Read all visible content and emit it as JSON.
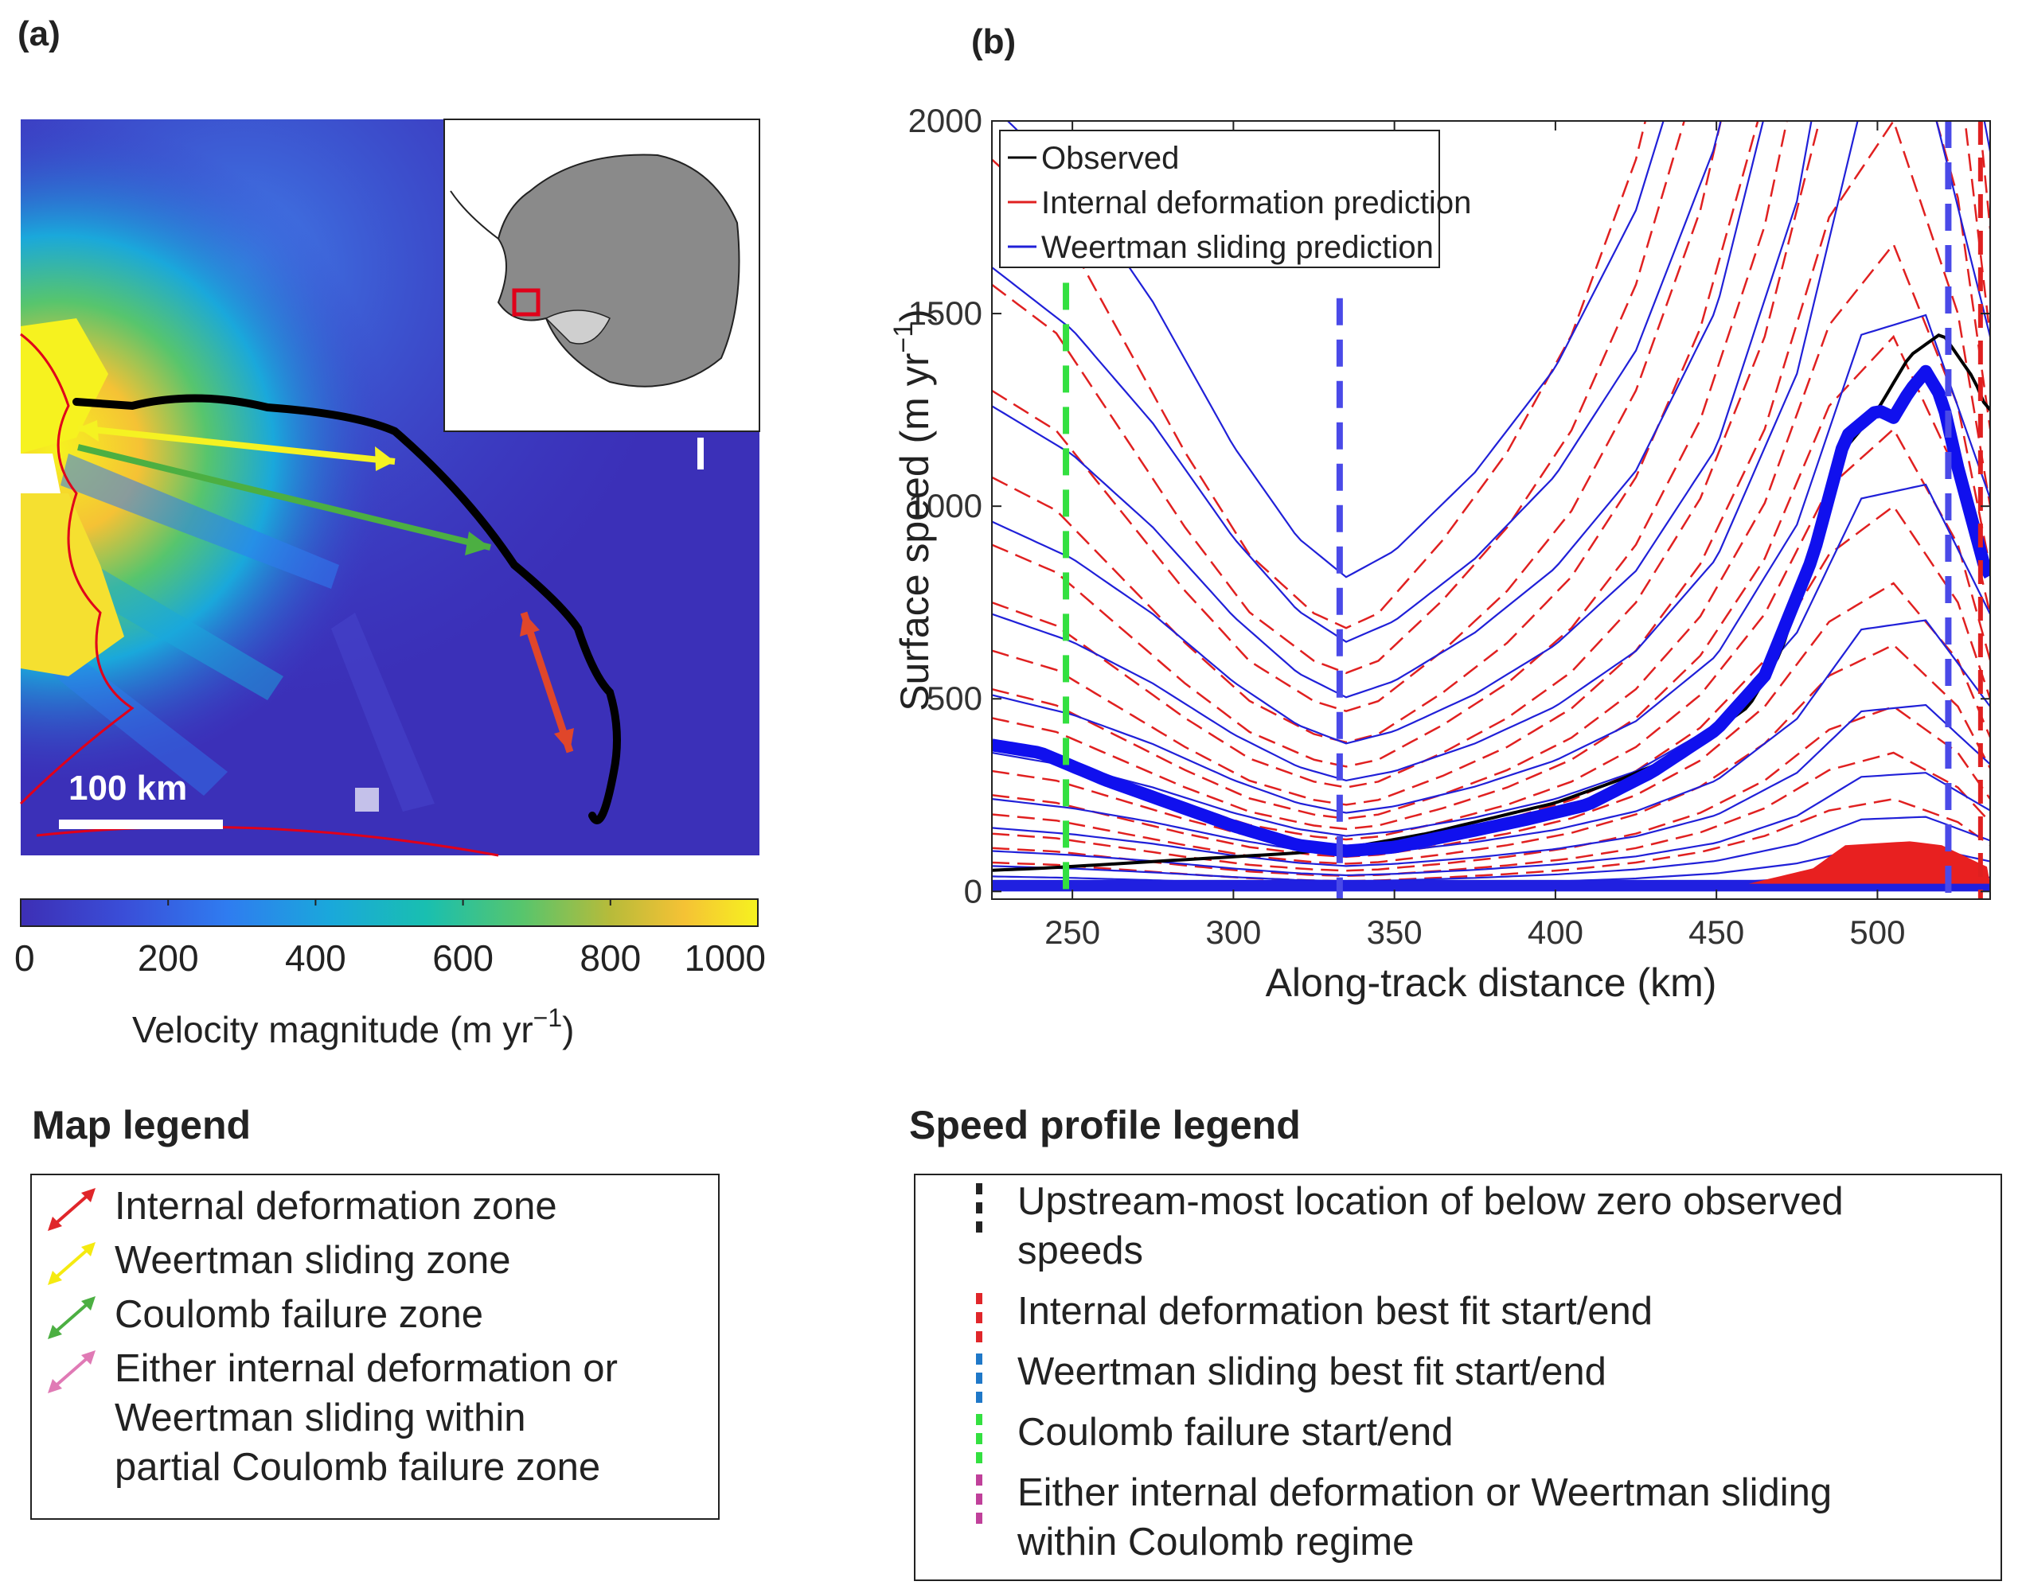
{
  "panel_a": {
    "label": "(a)",
    "scale_bar_label": "100 km",
    "colorbar": {
      "ticks": [
        "0",
        "200",
        "400",
        "600",
        "800",
        "1000"
      ],
      "label": "Velocity magnitude (m yr",
      "label_sup": "−1",
      "label_end": ")",
      "colors": [
        "#3d2fb5",
        "#3a4ed8",
        "#2f7cf0",
        "#1aa8db",
        "#19bfb0",
        "#57c56d",
        "#b7bb3a",
        "#f5c235",
        "#f6f21f"
      ]
    },
    "map": {
      "zones": [
        {
          "name": "Weertman sliding zone",
          "color": "#f5f222"
        },
        {
          "name": "Coulomb failure zone",
          "color": "#4caf42"
        },
        {
          "name": "Internal deformation zone",
          "color": "#e0462a"
        }
      ]
    }
  },
  "panel_b": {
    "label": "(b)"
  },
  "chart_data": {
    "type": "line",
    "title": "",
    "xlabel": "Along-track distance (km)",
    "ylabel": "Surface speed (m yr",
    "ylabel_sup": "−1",
    "ylabel_end": ")",
    "xlim": [
      225,
      535
    ],
    "ylim": [
      -20,
      2000
    ],
    "xticks": [
      250,
      300,
      350,
      400,
      450,
      500
    ],
    "yticks": [
      0,
      500,
      1000,
      1500,
      2000
    ],
    "legend": {
      "position": "top-left",
      "entries": [
        {
          "label": "Observed",
          "color": "#000000"
        },
        {
          "label": "Internal deformation prediction",
          "color": "#e02020"
        },
        {
          "label": "Weertman sliding prediction",
          "color": "#2020d8"
        }
      ]
    },
    "observed": {
      "x": [
        225,
        240,
        260,
        280,
        300,
        320,
        340,
        360,
        380,
        400,
        420,
        440,
        460,
        470,
        480,
        490,
        500,
        510,
        520,
        530,
        534
      ],
      "y": [
        55,
        60,
        70,
        80,
        90,
        100,
        120,
        150,
        190,
        230,
        290,
        360,
        480,
        620,
        880,
        1150,
        1250,
        1390,
        1450,
        1330,
        1250
      ]
    },
    "weertman_best": {
      "x": [
        225,
        240,
        260,
        280,
        300,
        320,
        335,
        350,
        370,
        390,
        410,
        430,
        450,
        465,
        480,
        490,
        500,
        505,
        510,
        515,
        520,
        525,
        534
      ],
      "y": [
        380,
        360,
        290,
        230,
        170,
        120,
        105,
        115,
        150,
        185,
        225,
        310,
        420,
        560,
        870,
        1180,
        1250,
        1230,
        1300,
        1350,
        1280,
        1100,
        820
      ]
    },
    "weertman_family": {
      "x": [
        225,
        250,
        275,
        300,
        320,
        335,
        350,
        375,
        400,
        425,
        450,
        475,
        495,
        515,
        535
      ],
      "base": [
        300,
        270,
        225,
        170,
        135,
        120,
        130,
        160,
        200,
        260,
        360,
        560,
        850,
        880,
        600
      ],
      "scales": [
        0.06,
        0.13,
        0.22,
        0.35,
        0.55,
        0.8,
        1.2,
        1.7,
        2.4,
        3.2,
        4.2,
        5.4,
        6.8
      ]
    },
    "deformation_family": {
      "x": [
        225,
        245,
        265,
        285,
        305,
        325,
        335,
        345,
        365,
        385,
        405,
        425,
        445,
        465,
        485,
        505,
        525,
        535
      ],
      "base": [
        250,
        230,
        190,
        150,
        115,
        95,
        90,
        95,
        120,
        150,
        190,
        250,
        340,
        480,
        700,
        800,
        600,
        400
      ],
      "scales": [
        0.3,
        0.45,
        0.6,
        0.8,
        1.0,
        1.25,
        1.5,
        1.8,
        2.1,
        2.5,
        3.0,
        3.6,
        4.3,
        5.2,
        6.3,
        7.6
      ]
    },
    "markers": {
      "coulomb_start": 248,
      "weertman_start": 333,
      "weertman_end": 522,
      "deformation_end": 532
    }
  },
  "map_legend": {
    "title": "Map legend",
    "items": [
      {
        "lines": [
          "Internal deformation zone"
        ],
        "color": "#e0262a"
      },
      {
        "lines": [
          "Weertman sliding zone"
        ],
        "color": "#f5ea10"
      },
      {
        "lines": [
          "Coulomb failure zone"
        ],
        "color": "#4caf42"
      },
      {
        "lines": [
          "Either internal deformation or",
          "Weertman sliding within",
          "partial Coulomb failure zone"
        ],
        "color": "#e07ab5"
      }
    ]
  },
  "profile_legend": {
    "title": "Speed profile legend",
    "items": [
      {
        "lines": [
          "Upstream-most location of below zero observed",
          "speeds"
        ],
        "color": "#222222"
      },
      {
        "lines": [
          "Internal deformation best fit start/end"
        ],
        "color": "#e0262a"
      },
      {
        "lines": [
          "Weertman sliding best fit start/end"
        ],
        "color": "#1f78c8"
      },
      {
        "lines": [
          "Coulomb failure start/end"
        ],
        "color": "#33e040"
      },
      {
        "lines": [
          "Either internal deformation or Weertman sliding",
          "within Coulomb regime"
        ],
        "color": "#c0409a"
      }
    ]
  }
}
